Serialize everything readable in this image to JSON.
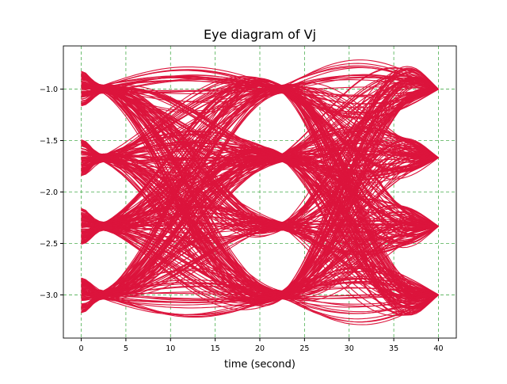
{
  "chart_data": {
    "type": "line",
    "title": "Eye diagram of Vj",
    "xlabel": "time (second)",
    "ylabel": "",
    "xlim": [
      -2,
      42
    ],
    "ylim": [
      -3.42,
      -0.58
    ],
    "xticks": [
      0,
      5,
      10,
      15,
      20,
      25,
      30,
      35,
      40
    ],
    "yticks": [
      -1.0,
      -1.5,
      -2.0,
      -2.5,
      -3.0
    ],
    "ytick_labels": [
      "−1.0",
      "−1.5",
      "−2.0",
      "−2.5",
      "−3.0"
    ],
    "grid": true,
    "grid_color": "#4caf50",
    "line_color": "#dc143c",
    "symbol_levels": [
      -1.0,
      -1.667,
      -2.333,
      -3.0
    ],
    "symbol_period": 20,
    "x_range": [
      0,
      40
    ],
    "crossing_times": [
      2.5,
      22.5
    ],
    "overshoot_peaks": [
      {
        "x": 13,
        "y_top": -0.78,
        "y_bottom": -3.0
      },
      {
        "x": 32.5,
        "y_top": -0.72,
        "y_bottom": -3.28
      }
    ],
    "trace_count": 400
  }
}
